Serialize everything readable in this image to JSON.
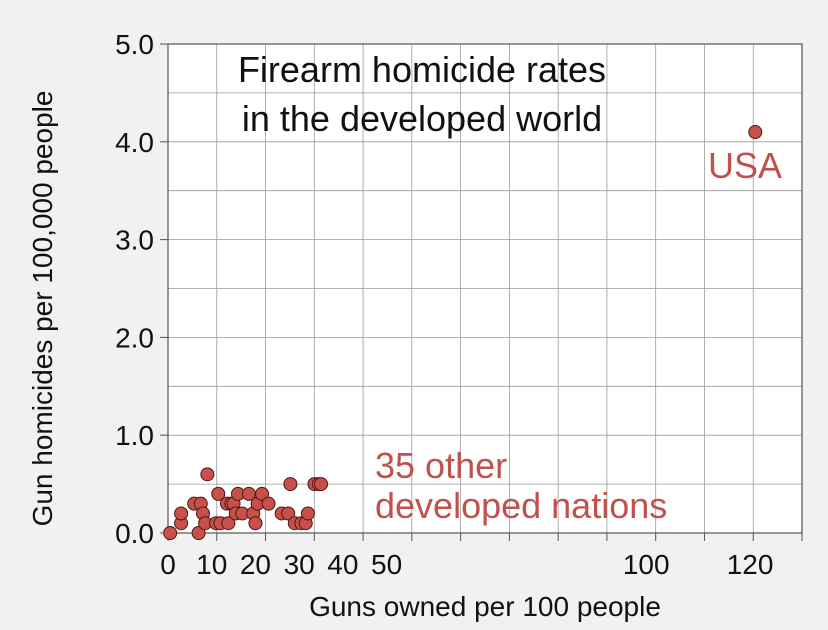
{
  "chart_data": {
    "type": "scatter",
    "title_lines": [
      "Firearm homicide rates",
      "in the developed world"
    ],
    "xlabel": "Guns owned per 100 people",
    "ylabel": "Gun homicides per 100,000 people",
    "xlim": [
      0,
      130
    ],
    "ylim": [
      0,
      5
    ],
    "grid": true,
    "x_scale": "compressed (10 units per gridline up to 50, 20 units per gridline from 50 to 130)",
    "x_ticks": [
      {
        "value": 0,
        "label": "0"
      },
      {
        "value": 10,
        "label": "10"
      },
      {
        "value": 20,
        "label": "20"
      },
      {
        "value": 30,
        "label": "30"
      },
      {
        "value": 40,
        "label": "40"
      },
      {
        "value": 50,
        "label": "50"
      },
      {
        "value": 100,
        "label": "100"
      },
      {
        "value": 120,
        "label": "120"
      }
    ],
    "y_ticks": [
      {
        "value": 0,
        "label": "0.0"
      },
      {
        "value": 1,
        "label": "1.0"
      },
      {
        "value": 2,
        "label": "2.0"
      },
      {
        "value": 3,
        "label": "3.0"
      },
      {
        "value": 4,
        "label": "4.0"
      },
      {
        "value": 5,
        "label": "5.0"
      }
    ],
    "annotations": {
      "usa": "USA",
      "others_lines": [
        "35 other",
        "developed nations"
      ]
    },
    "series": [
      {
        "points": [
          {
            "x": 0.5,
            "y": 0.0
          },
          {
            "x": 3,
            "y": 0.1
          },
          {
            "x": 3,
            "y": 0.2
          },
          {
            "x": 6,
            "y": 0.3
          },
          {
            "x": 7,
            "y": 0.0
          },
          {
            "x": 7.5,
            "y": 0.3
          },
          {
            "x": 8,
            "y": 0.2
          },
          {
            "x": 8.5,
            "y": 0.1
          },
          {
            "x": 9,
            "y": 0.6
          },
          {
            "x": 11,
            "y": 0.1
          },
          {
            "x": 11.5,
            "y": 0.4
          },
          {
            "x": 12,
            "y": 0.1
          },
          {
            "x": 13.5,
            "y": 0.3
          },
          {
            "x": 13.8,
            "y": 0.1
          },
          {
            "x": 14.5,
            "y": 0.3
          },
          {
            "x": 15,
            "y": 0.3
          },
          {
            "x": 15.5,
            "y": 0.2
          },
          {
            "x": 16,
            "y": 0.4
          },
          {
            "x": 17,
            "y": 0.2
          },
          {
            "x": 18.5,
            "y": 0.4
          },
          {
            "x": 19.5,
            "y": 0.2
          },
          {
            "x": 20,
            "y": 0.1
          },
          {
            "x": 20.5,
            "y": 0.3
          },
          {
            "x": 21.5,
            "y": 0.4
          },
          {
            "x": 23,
            "y": 0.3
          },
          {
            "x": 26,
            "y": 0.2
          },
          {
            "x": 27.5,
            "y": 0.2
          },
          {
            "x": 28,
            "y": 0.5
          },
          {
            "x": 29,
            "y": 0.1
          },
          {
            "x": 30.5,
            "y": 0.1
          },
          {
            "x": 31.5,
            "y": 0.1
          },
          {
            "x": 32,
            "y": 0.2
          },
          {
            "x": 33.5,
            "y": 0.5
          },
          {
            "x": 34.5,
            "y": 0.5
          },
          {
            "x": 35,
            "y": 0.5
          },
          {
            "x": 121,
            "y": 4.1,
            "label": "USA"
          }
        ]
      }
    ]
  },
  "colors": {
    "background": "#f1f1f1",
    "plot_background": "#ffffff",
    "grid": "#9a9a9a",
    "axis": "#555555",
    "point_fill": "#c95049",
    "point_stroke": "#4a1a16",
    "annotation": "#c0514d",
    "text": "#111111"
  }
}
